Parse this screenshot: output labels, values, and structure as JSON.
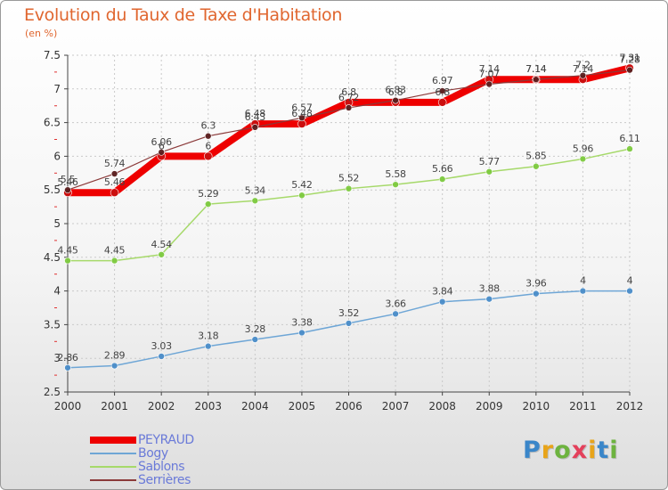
{
  "header": {
    "title": "Evolution du Taux de Taxe d'Habitation",
    "subtitle": "(en %)"
  },
  "brand": {
    "logo_letters": [
      "P",
      "r",
      "o",
      "x",
      "i",
      "t",
      "i"
    ],
    "logo_colors": [
      "#3a86c9",
      "#e8a41a",
      "#6db33f",
      "#e4405b",
      "#e8a41a",
      "#3a86c9",
      "#6db33f"
    ]
  },
  "chart_data": {
    "type": "line",
    "x": [
      2000,
      2001,
      2002,
      2003,
      2004,
      2005,
      2006,
      2007,
      2008,
      2009,
      2010,
      2011,
      2012
    ],
    "ylim": [
      2.5,
      7.5
    ],
    "yticks": [
      "2.5",
      "3",
      "3.5",
      "4",
      "4.5",
      "5",
      "5.5",
      "6",
      "6.5",
      "7",
      "7.5"
    ],
    "grid": true,
    "legend_position": "bottom-left",
    "series": [
      {
        "name": "PEYRAUD",
        "color": "#ee0000",
        "values": [
          5.46,
          5.46,
          6,
          6,
          6.48,
          6.48,
          6.8,
          6.8,
          6.8,
          7.14,
          7.14,
          7.14,
          7.31
        ],
        "labels": [
          "5.46",
          "5.46",
          "6",
          "6",
          "6.48",
          "6.48",
          "6.8",
          "6.8",
          "6.8",
          "7.14",
          "7.14",
          "7.14",
          "7.31"
        ]
      },
      {
        "name": "Bogy",
        "color": "#6ea6d6",
        "values": [
          2.86,
          2.89,
          3.03,
          3.18,
          3.28,
          3.38,
          3.52,
          3.66,
          3.84,
          3.88,
          3.96,
          4,
          4
        ],
        "labels": [
          "2.86",
          "2.89",
          "3.03",
          "3.18",
          "3.28",
          "3.38",
          "3.52",
          "3.66",
          "3.84",
          "3.88",
          "3.96",
          "4",
          "4"
        ]
      },
      {
        "name": "Sablons",
        "color": "#a6d96a",
        "values": [
          4.45,
          4.45,
          4.54,
          5.29,
          5.34,
          5.42,
          5.52,
          5.58,
          5.66,
          5.77,
          5.85,
          5.96,
          6.11
        ],
        "labels": [
          "4.45",
          "4.45",
          "4.54",
          "5.29",
          "5.34",
          "5.42",
          "5.52",
          "5.58",
          "5.66",
          "5.77",
          "5.85",
          "5.96",
          "6.11"
        ]
      },
      {
        "name": "Serrières",
        "color": "#8b3a3a",
        "values": [
          5.5,
          5.74,
          6.06,
          6.3,
          6.43,
          6.57,
          6.72,
          6.83,
          6.97,
          7.07,
          7.14,
          7.2,
          7.28
        ],
        "labels": [
          "5.5",
          "5.74",
          "6.06",
          "6.3",
          "6.43",
          "6.57",
          "6.72",
          "6.83",
          "6.97",
          "7.07",
          "7.14",
          "7.2",
          "7.28"
        ]
      }
    ]
  }
}
